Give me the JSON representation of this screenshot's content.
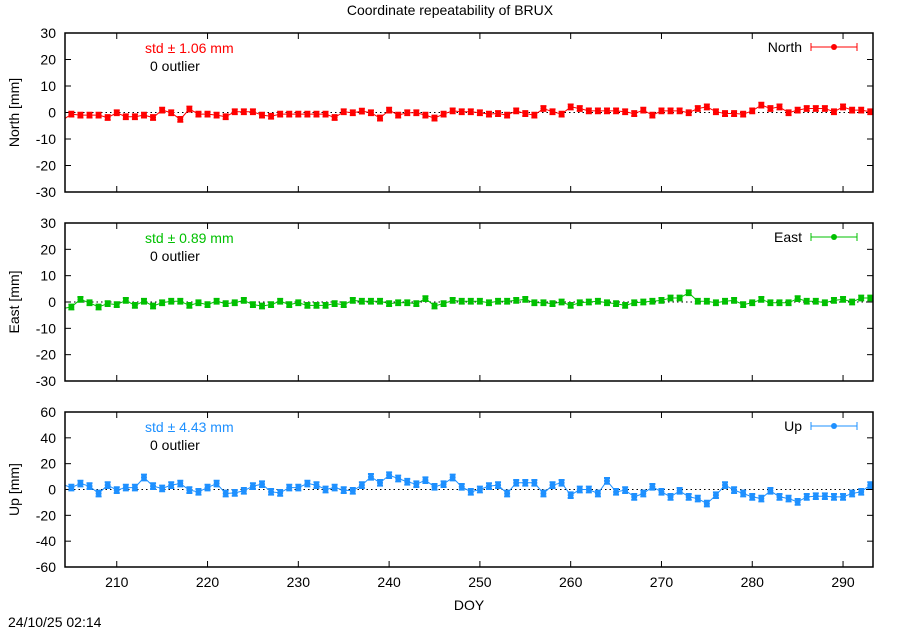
{
  "chart_data": {
    "title": "Coordinate repeatability of BRUX",
    "xlabel": "DOY",
    "xlim": [
      204.3,
      293.3
    ],
    "xticks": [
      210,
      220,
      230,
      240,
      250,
      260,
      270,
      280,
      290
    ],
    "x_start": 204,
    "timestamp": "24/10/25 02:14",
    "panels": [
      {
        "type": "line",
        "name": "North",
        "ylabel": "North [mm]",
        "ylim": [
          -30,
          30
        ],
        "yticks": [
          30,
          20,
          10,
          0,
          -10,
          -20,
          -30
        ],
        "color": "#ff0000",
        "std_text": "std ± 1.06 mm",
        "outlier_text": "0 outlier",
        "error": 0.9,
        "values": [
          -3,
          -0.6,
          -1,
          -1,
          -1,
          -1.9,
          -0.1,
          -1.6,
          -1.6,
          -1,
          -1.9,
          0.9,
          -0.1,
          -2.6,
          1.3,
          -0.6,
          -0.6,
          -1,
          -1.6,
          0.3,
          0.3,
          0.3,
          -1,
          -1.4,
          -0.6,
          -0.6,
          -0.6,
          -0.6,
          -0.6,
          -0.6,
          -1.9,
          0.3,
          -0.1,
          0.5,
          -0.1,
          -2.1,
          0.9,
          -1,
          -0.1,
          -0.1,
          -1,
          -2.1,
          -0.6,
          0.6,
          0.3,
          0.3,
          -0.1,
          -0.6,
          -0.4,
          -1,
          0.6,
          -0.4,
          -1,
          1.5,
          0.3,
          -0.6,
          2.1,
          1.5,
          0.6,
          0.6,
          0.6,
          0.6,
          0.3,
          -0.4,
          0.9,
          -1,
          0.6,
          0.6,
          0.6,
          -0.1,
          1.5,
          2.1,
          0.3,
          -0.4,
          -0.4,
          -0.6,
          0.6,
          2.8,
          1.5,
          2.1,
          -0.1,
          0.9,
          1.5,
          1.5,
          1.5,
          0.3,
          2.1,
          0.9,
          0.9,
          0.3
        ]
      },
      {
        "type": "line",
        "name": "East",
        "ylabel": "East [mm]",
        "ylim": [
          -30,
          30
        ],
        "yticks": [
          30,
          20,
          10,
          0,
          -10,
          -20,
          -30
        ],
        "color": "#00c000",
        "std_text": "std ± 0.89 mm",
        "outlier_text": "0 outlier",
        "error": 0.9,
        "values": [
          -2.5,
          -1.9,
          1,
          -0.3,
          -1.9,
          -0.6,
          -1,
          0.6,
          -1.3,
          0.3,
          -1.5,
          -0.3,
          0.3,
          0.3,
          -1.3,
          -0.3,
          -1,
          0.3,
          -0.6,
          -0.3,
          0.6,
          -1,
          -1.5,
          -1,
          0.3,
          -1,
          -0.3,
          -1.3,
          -1.3,
          -1.3,
          -0.6,
          -1,
          0.6,
          0.3,
          0.3,
          0.3,
          -0.6,
          -0.3,
          -0.3,
          -0.6,
          1.3,
          -1.5,
          -0.6,
          0.6,
          0.3,
          0.3,
          0.3,
          -0.3,
          0.3,
          0.3,
          0.6,
          1,
          -0.3,
          -0.3,
          -0.6,
          0,
          -1.3,
          -0.3,
          0,
          0.3,
          -0.3,
          -0.6,
          -1.3,
          -0.3,
          0,
          0.3,
          0.6,
          1.5,
          1.5,
          3.5,
          0.3,
          0.3,
          -0.3,
          0.3,
          0.6,
          -1,
          -0.3,
          1,
          -0.3,
          -0.3,
          -0.3,
          1.3,
          0.3,
          0.3,
          -0.3,
          0.6,
          1,
          0,
          1.5,
          1.5
        ]
      },
      {
        "type": "line",
        "name": "Up",
        "ylabel": "Up [mm]",
        "ylim": [
          -60,
          60
        ],
        "yticks": [
          60,
          40,
          20,
          0,
          -20,
          -40,
          -60
        ],
        "color": "#1e90ff",
        "std_text": "std ± 4.43 mm",
        "outlier_text": "0 outlier",
        "error": 2.2,
        "values": [
          4,
          1.5,
          4.6,
          2.6,
          -3.1,
          3.4,
          -0.5,
          1.5,
          1.5,
          9.3,
          2.6,
          0.8,
          3.4,
          4.6,
          -0.5,
          -1.8,
          1.5,
          4.6,
          -3.1,
          -2.6,
          -1.0,
          2.6,
          4.1,
          -1.8,
          -2.6,
          1.5,
          1.5,
          4.6,
          3.4,
          0,
          1.5,
          -0.5,
          -1.0,
          3.4,
          9.8,
          5.2,
          11.1,
          8.5,
          6.0,
          4.1,
          7.2,
          2.1,
          4.1,
          9.3,
          2.1,
          -1.8,
          0,
          2.6,
          3.4,
          -3.1,
          5.2,
          5.2,
          5.2,
          -3.1,
          3.4,
          5.2,
          -4.4,
          0,
          0,
          -3.1,
          6.7,
          -1.8,
          -0.5,
          -5.7,
          -3.1,
          2.1,
          -1.8,
          -5.7,
          -1.0,
          -5.7,
          -7.0,
          -10.9,
          -4.4,
          3.4,
          -0.5,
          -3.1,
          -5.7,
          -7.0,
          -1.0,
          -5.7,
          -7.0,
          -9.6,
          -5.7,
          -5.2,
          -5.2,
          -5.7,
          -5.7,
          -3.1,
          -1.8,
          3.4
        ]
      }
    ]
  }
}
